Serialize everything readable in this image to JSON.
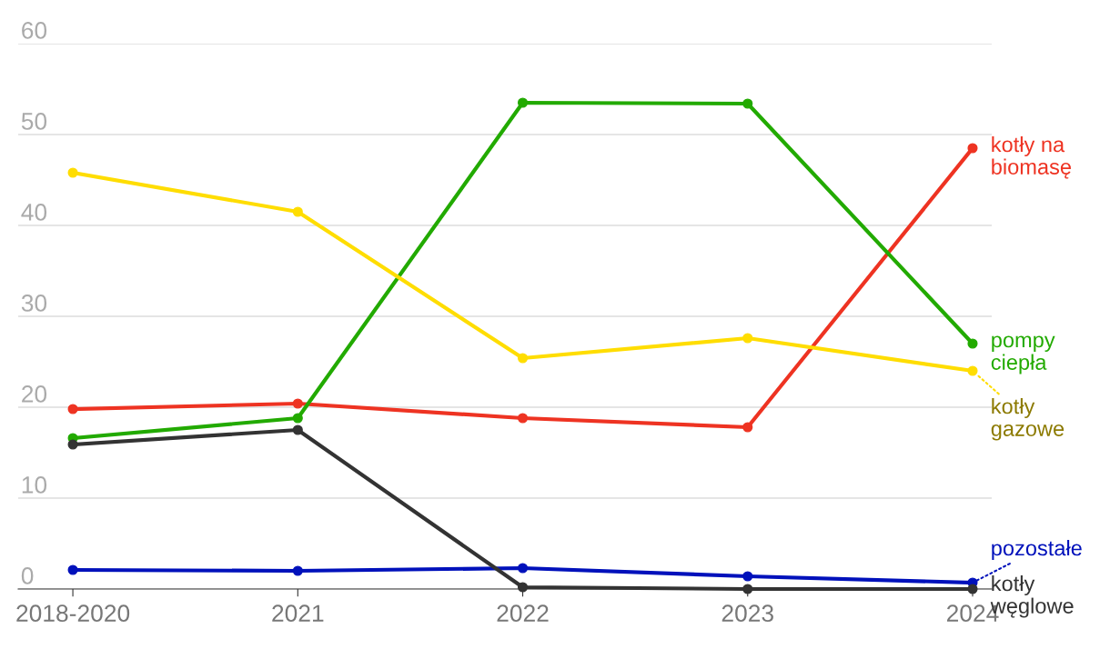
{
  "chart_data": {
    "type": "line",
    "categories": [
      "2018-2020",
      "2021",
      "2022",
      "2023",
      "2024"
    ],
    "series": [
      {
        "name": "kotły na\nbiomasę",
        "color": "#ee3322",
        "values": [
          19.8,
          20.4,
          18.8,
          17.8,
          48.5
        ]
      },
      {
        "name": "pompy\nciepła",
        "color": "#22aa00",
        "values": [
          16.6,
          18.8,
          53.5,
          53.4,
          27.0
        ]
      },
      {
        "name": "kotły\ngazowe",
        "color": "#ffdd00",
        "values": [
          45.8,
          41.5,
          25.4,
          27.6,
          24.0
        ]
      },
      {
        "name": "pozostałe",
        "color": "#0011bb",
        "values": [
          2.1,
          2.0,
          2.3,
          1.4,
          0.7
        ]
      },
      {
        "name": "kotły\nwęglowe",
        "color": "#333333",
        "values": [
          15.9,
          17.5,
          0.2,
          0.0,
          0.0
        ]
      }
    ],
    "ylim": [
      0,
      60
    ],
    "yticks": [
      0,
      10,
      20,
      30,
      40,
      50,
      60
    ],
    "grid": "y",
    "marker": "circle",
    "line_style": "solid",
    "legend": "right"
  }
}
